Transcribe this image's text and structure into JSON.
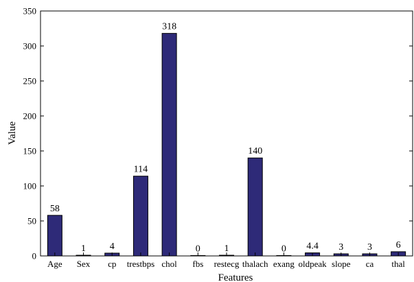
{
  "chart_data": {
    "type": "bar",
    "categories": [
      "Age",
      "Sex",
      "cp",
      "trestbps",
      "chol",
      "fbs",
      "restecg",
      "thalach",
      "exang",
      "oldpeak",
      "slope",
      "ca",
      "thal"
    ],
    "values": [
      58,
      1,
      4,
      114,
      318,
      0,
      1,
      140,
      0,
      4.4,
      3,
      3,
      6
    ],
    "data_labels": [
      "58",
      "1",
      "4",
      "114",
      "318",
      "0",
      "1",
      "140",
      "0",
      "4.4",
      "3",
      "3",
      "6"
    ],
    "xlabel": "Features",
    "ylabel": "Value",
    "ylim": [
      0,
      350
    ],
    "yticks": [
      0,
      50,
      100,
      150,
      200,
      250,
      300,
      350
    ],
    "grid": false,
    "legend": "none",
    "bar_color": "#2e2a78",
    "bar_edge_color": "#000000"
  }
}
